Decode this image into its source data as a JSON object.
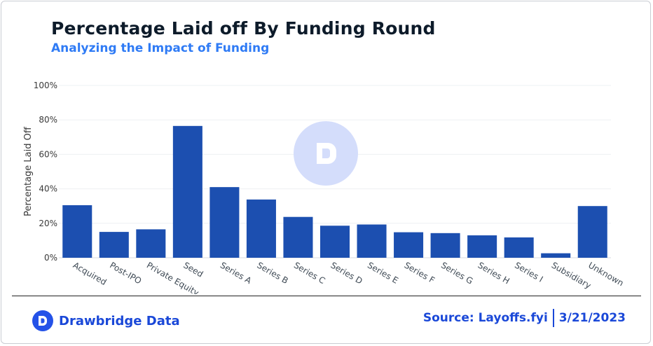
{
  "header": {
    "title": "Percentage Laid off By Funding Round",
    "subtitle": "Analyzing the Impact of Funding"
  },
  "footer": {
    "brand_name": "Drawbridge Data",
    "source_label": "Source: Layoffs.fyi",
    "date": "3/21/2023"
  },
  "colors": {
    "bar": "#1c4fb0",
    "title": "#0d1b2a",
    "subtitle": "#2f7bf5",
    "brand": "#1a48d8",
    "watermark": "#d4ddfb"
  },
  "chart_data": {
    "type": "bar",
    "title": "Percentage Laid off By Funding Round",
    "subtitle": "Analyzing the Impact of Funding",
    "xlabel": "",
    "ylabel": "Percentage Laid Off",
    "ylim": [
      0,
      100
    ],
    "y_ticks": [
      0,
      20,
      40,
      60,
      80,
      100
    ],
    "y_tick_labels": [
      "0%",
      "20%",
      "40%",
      "60%",
      "80%",
      "100%"
    ],
    "grid": true,
    "categories": [
      "Acquired",
      "Post-IPO",
      "Private Equity",
      "Seed",
      "Series A",
      "Series B",
      "Series C",
      "Series D",
      "Series E",
      "Series F",
      "Series G",
      "Series H",
      "Series I",
      "Subsidiary",
      "Unknown"
    ],
    "values": [
      30.5,
      15,
      16.5,
      76.5,
      41,
      33.8,
      23.7,
      18.6,
      19.3,
      14.8,
      14.3,
      13,
      11.8,
      2.6,
      30
    ]
  }
}
